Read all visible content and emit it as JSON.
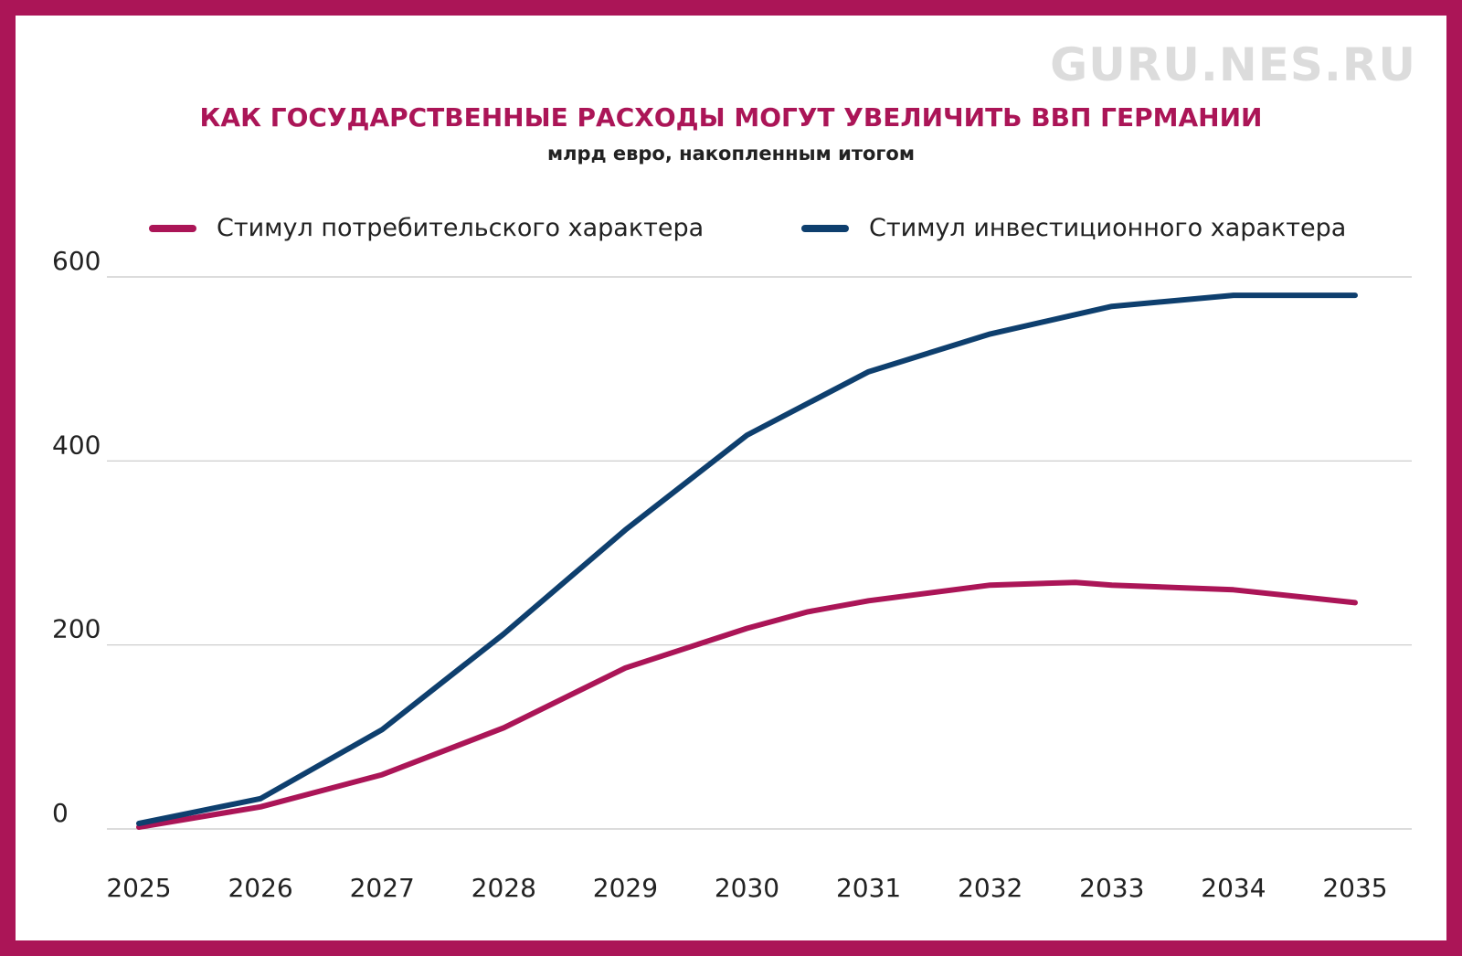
{
  "watermark": "GURU.NES.RU",
  "chart_data": {
    "type": "line",
    "title": "КАК ГОСУДАРСТВЕННЫЕ РАСХОДЫ МОГУТ УВЕЛИЧИТЬ ВВП ГЕРМАНИИ",
    "subtitle": "млрд евро, накопленным итогом",
    "xlabel": "",
    "ylabel": "",
    "x": [
      "2025",
      "2026",
      "2027",
      "2028",
      "2029",
      "2030",
      "2031",
      "2032",
      "2033",
      "2034",
      "2035"
    ],
    "ylim": [
      0,
      600
    ],
    "yticks": [
      0,
      200,
      400,
      600
    ],
    "grid": true,
    "legend_position": "top",
    "series": [
      {
        "name": "Стимул потребительского характера",
        "color": "#ab1557",
        "points": [
          [
            "2025",
            2
          ],
          [
            "2026",
            24
          ],
          [
            "2027",
            59
          ],
          [
            "2028",
            110
          ],
          [
            "2029",
            175
          ],
          [
            "2030",
            218
          ],
          [
            "2030.5",
            236
          ],
          [
            "2031",
            248
          ],
          [
            "2032",
            265
          ],
          [
            "2032.7",
            268
          ],
          [
            "2033",
            265
          ],
          [
            "2034",
            260
          ],
          [
            "2035",
            246
          ]
        ]
      },
      {
        "name": "Стимул инвестиционного характера",
        "color": "#0e3f6e",
        "points": [
          [
            "2025",
            6
          ],
          [
            "2026",
            33
          ],
          [
            "2027",
            108
          ],
          [
            "2028",
            212
          ],
          [
            "2029",
            325
          ],
          [
            "2030",
            428
          ],
          [
            "2031",
            497
          ],
          [
            "2032",
            538
          ],
          [
            "2033",
            568
          ],
          [
            "2034",
            580
          ],
          [
            "2035",
            580
          ]
        ]
      }
    ]
  }
}
